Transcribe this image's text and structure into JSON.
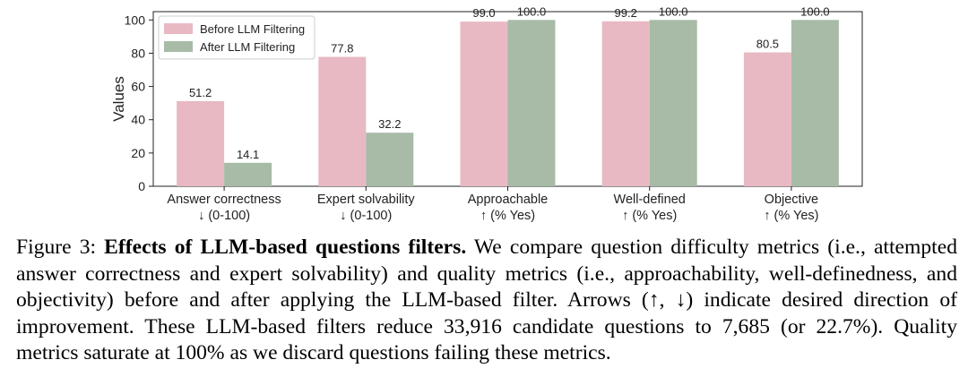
{
  "chart_data": {
    "type": "bar",
    "ylabel": "Values",
    "ylim": [
      0,
      105
    ],
    "yticks": [
      0,
      20,
      40,
      60,
      80,
      100
    ],
    "grid": false,
    "legend_position": "top-left",
    "categories": [
      {
        "line1": "Answer correctness",
        "line2": "↓ (0-100)"
      },
      {
        "line1": "Expert solvability",
        "line2": "↓ (0-100)"
      },
      {
        "line1": "Approachable",
        "line2": "↑ (% Yes)"
      },
      {
        "line1": "Well-defined",
        "line2": "↑ (% Yes)"
      },
      {
        "line1": "Objective",
        "line2": "↑ (% Yes)"
      }
    ],
    "series": [
      {
        "name": "Before LLM Filtering",
        "color": "#e8b9c3",
        "values": [
          51.2,
          77.8,
          99.0,
          99.2,
          80.5
        ],
        "labels": [
          "51.2",
          "77.8",
          "99.0",
          "99.2",
          "80.5"
        ]
      },
      {
        "name": "After LLM Filtering",
        "color": "#a7bba7",
        "values": [
          14.1,
          32.2,
          100.0,
          100.0,
          100.0
        ],
        "labels": [
          "14.1",
          "32.2",
          "100.0",
          "100.0",
          "100.0"
        ]
      }
    ]
  },
  "caption": {
    "label": "Figure 3:",
    "title": "Effects of LLM-based questions filters.",
    "body": "We compare question difficulty metrics (i.e., attempted answer correctness and expert solvability) and quality metrics (i.e., approachability, well-definedness, and objectivity) before and after applying the LLM-based filter. Arrows (↑, ↓) indicate desired direction of improvement. These LLM-based filters reduce 33,916 candidate questions to 7,685 (or 22.7%). Quality metrics saturate at 100% as we discard questions failing these metrics."
  }
}
